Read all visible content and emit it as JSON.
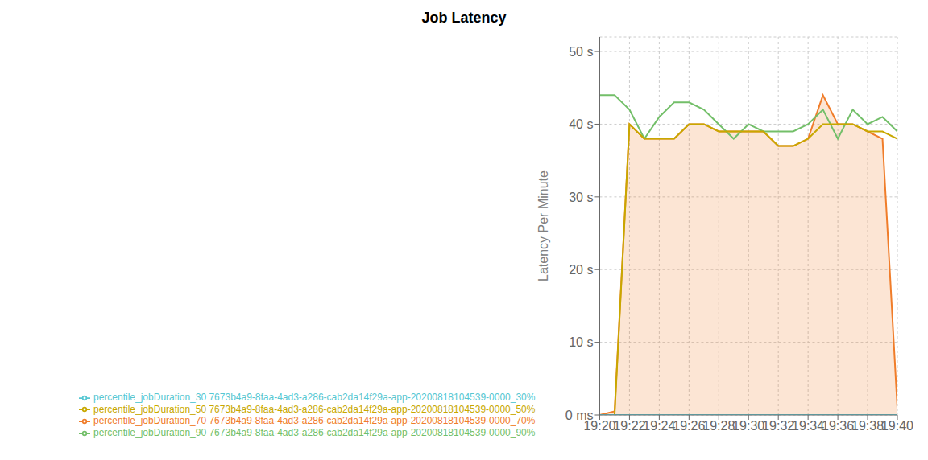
{
  "chart_data": {
    "type": "line",
    "title": "Job Latency",
    "ylabel": "Latency Per Minute",
    "x": [
      0,
      1,
      2,
      3,
      4,
      5,
      6,
      7,
      8,
      9,
      10,
      11,
      12,
      13,
      14,
      15,
      16,
      17,
      18,
      19,
      20
    ],
    "xlim": [
      0,
      20
    ],
    "xticks": [
      {
        "value": 0,
        "label": "19:20"
      },
      {
        "value": 2,
        "label": "19:22"
      },
      {
        "value": 4,
        "label": "19:24"
      },
      {
        "value": 6,
        "label": "19:26"
      },
      {
        "value": 8,
        "label": "19:28"
      },
      {
        "value": 10,
        "label": "19:30"
      },
      {
        "value": 12,
        "label": "19:32"
      },
      {
        "value": 14,
        "label": "19:34"
      },
      {
        "value": 16,
        "label": "19:36"
      },
      {
        "value": 18,
        "label": "19:38"
      },
      {
        "value": 20,
        "label": "19:40"
      }
    ],
    "ylim": [
      0,
      52
    ],
    "yticks": [
      {
        "value": 0,
        "label": "0 ms"
      },
      {
        "value": 10,
        "label": "10 s"
      },
      {
        "value": 20,
        "label": "20 s"
      },
      {
        "value": 30,
        "label": "30 s"
      },
      {
        "value": 40,
        "label": "40 s"
      },
      {
        "value": 50,
        "label": "50 s"
      }
    ],
    "grid": true,
    "legend": "bottom",
    "series": [
      {
        "name": "percentile_jobDuration_90 7673b4a9-8faa-4ad3-a286-cab2da14f29a-app-20200818104539-0000_90%",
        "color": "#73bf69",
        "values": [
          44,
          44,
          42,
          38,
          41,
          43,
          43,
          42,
          40,
          38,
          40,
          39,
          39,
          39,
          40,
          42,
          38,
          42,
          40,
          41,
          39
        ]
      },
      {
        "name": "percentile_jobDuration_50 7673b4a9-8faa-4ad3-a286-cab2da14f29a-app-20200818104539-0000_50%",
        "color": "#c8a800",
        "values": [
          0,
          0,
          40,
          38,
          38,
          38,
          40,
          40,
          39,
          39,
          39,
          39,
          37,
          37,
          38,
          40,
          40,
          40,
          39,
          39,
          38
        ]
      },
      {
        "name": "percentile_jobDuration_30 7673b4a9-8faa-4ad3-a286-cab2da14f29a-app-20200818104539-0000_30%",
        "color": "#56c7d2",
        "values": [
          0,
          0,
          0,
          0,
          0,
          0,
          0,
          0,
          0,
          0,
          0,
          0,
          0,
          0,
          0,
          0,
          0,
          0,
          0,
          0,
          0
        ]
      },
      {
        "name": "percentile_jobDuration_70 7673b4a9-8faa-4ad3-a286-cab2da14f29a-app-20200818104539-0000_70%",
        "color": "#f07d2a",
        "type": "area",
        "values": [
          0,
          0.5,
          40,
          38,
          38,
          38,
          40,
          40,
          39,
          39,
          39,
          39,
          37,
          37,
          38,
          44,
          40,
          40,
          39,
          38,
          1
        ]
      }
    ]
  }
}
